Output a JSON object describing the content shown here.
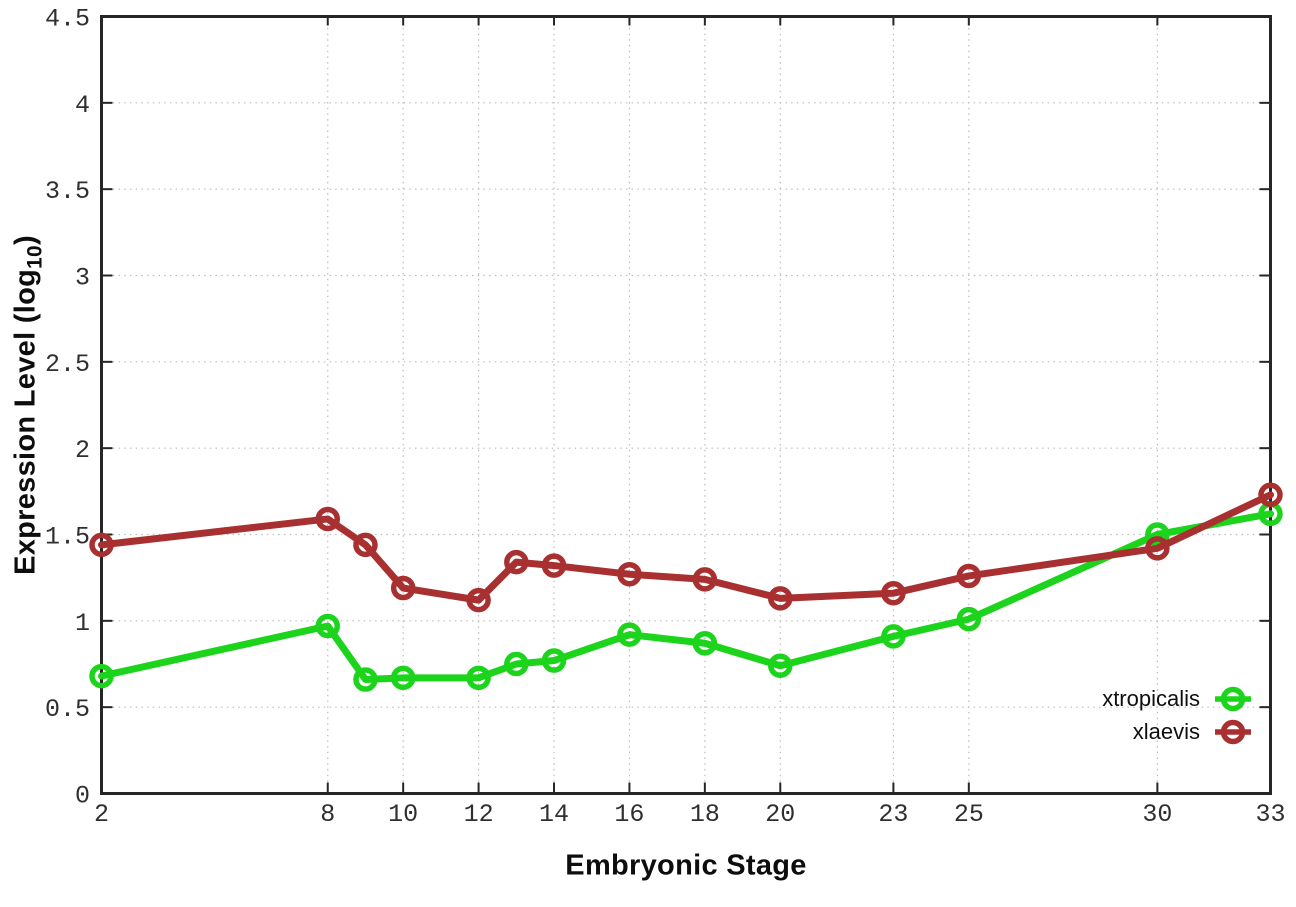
{
  "figure": {
    "background": "#ffffff",
    "grid_color": "#bcbcbc",
    "axis_color": "#262626"
  },
  "chart_data": {
    "type": "line",
    "title": "",
    "xlabel": "Embryonic Stage",
    "ylabel": "Expression Level (log10)",
    "ylabel_parts": {
      "prefix": "Expression Level (log",
      "subscript": "10",
      "suffix": ")"
    },
    "x": [
      2,
      8,
      9,
      10,
      12,
      13,
      14,
      16,
      18,
      20,
      23,
      25,
      30,
      33
    ],
    "series": [
      {
        "name": "xtropicalis",
        "color": "#1bd41b",
        "marker": "open-circle",
        "values": [
          0.68,
          0.97,
          0.66,
          0.67,
          0.67,
          0.75,
          0.77,
          0.92,
          0.87,
          0.74,
          0.91,
          1.01,
          1.5,
          1.62
        ]
      },
      {
        "name": "xlaevis",
        "color": "#a93030",
        "marker": "open-circle",
        "values": [
          1.44,
          1.59,
          1.44,
          1.19,
          1.12,
          1.34,
          1.32,
          1.27,
          1.24,
          1.13,
          1.16,
          1.26,
          1.42,
          1.73
        ]
      }
    ],
    "xlim": [
      2,
      33
    ],
    "ylim": [
      0,
      4.5
    ],
    "xticks": {
      "values": [
        2,
        8,
        10,
        12,
        14,
        16,
        18,
        20,
        23,
        25,
        30,
        33
      ],
      "labels": [
        "2",
        "8",
        "10",
        "12",
        "14",
        "16",
        "18",
        "20",
        "23",
        "25",
        "30",
        "33"
      ]
    },
    "yticks": {
      "values": [
        0,
        0.5,
        1,
        1.5,
        2,
        2.5,
        3,
        3.5,
        4,
        4.5
      ],
      "labels": [
        "0",
        "0.5",
        "1",
        "1.5",
        "2",
        "2.5",
        "3",
        "3.5",
        "4",
        "4.5"
      ]
    },
    "grid": true,
    "grid_style": "dotted",
    "legend_position": "bottom-right",
    "legend_entries": [
      "xtropicalis",
      "xlaevis"
    ]
  }
}
